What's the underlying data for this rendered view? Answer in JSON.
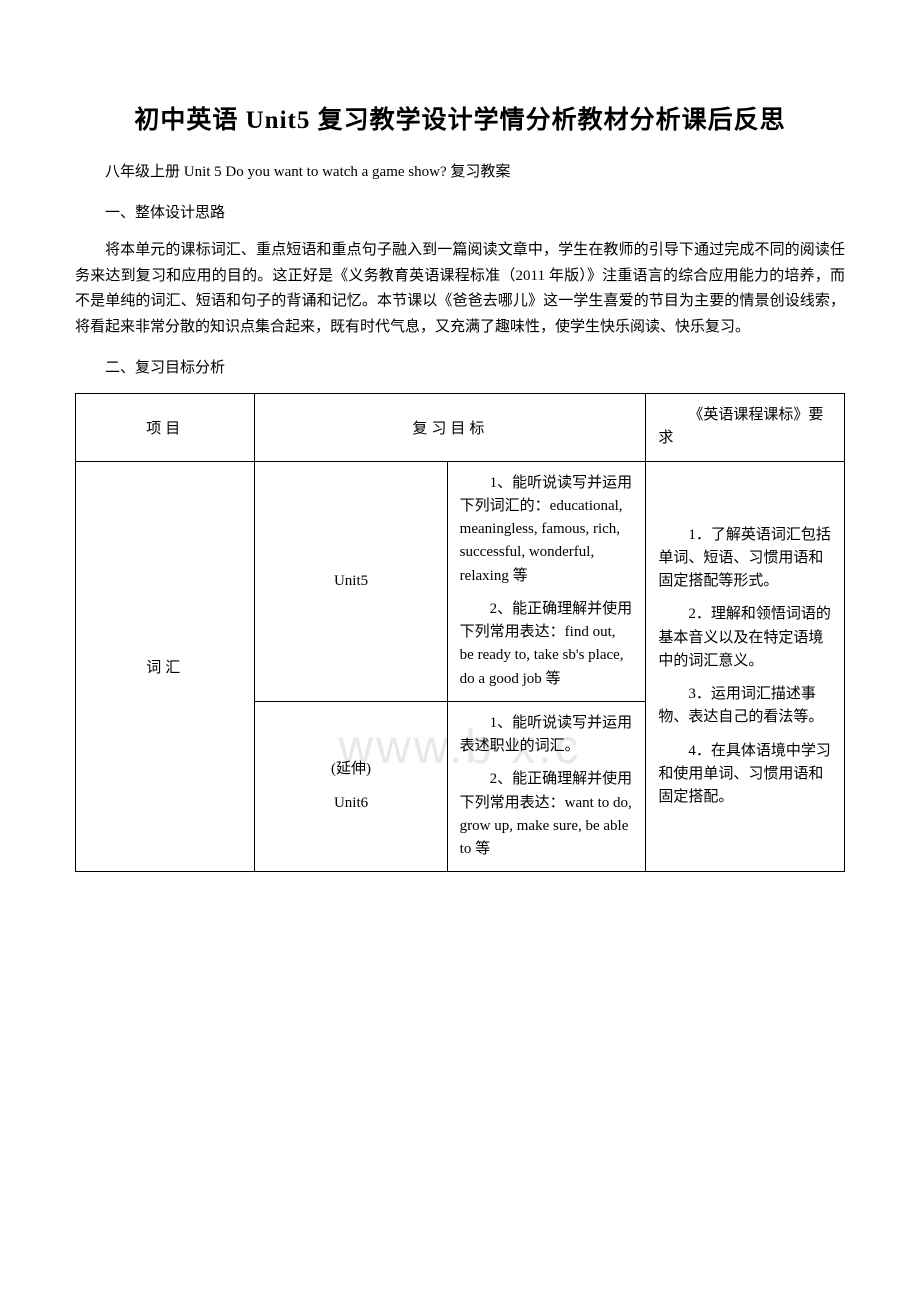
{
  "title": "初中英语 Unit5 复习教学设计学情分析教材分析课后反思",
  "subtitle": "八年级上册 Unit 5 Do you want to watch a game show? 复习教案",
  "section1_heading": "一、整体设计思路",
  "section1_body": "将本单元的课标词汇、重点短语和重点句子融入到一篇阅读文章中，学生在教师的引导下通过完成不同的阅读任务来达到复习和应用的目的。这正好是《义务教育英语课程标准（2011 年版）》注重语言的综合应用能力的培养，而不是单纯的词汇、短语和句子的背诵和记忆。本节课以《爸爸去哪儿》这一学生喜爱的节目为主要的情景创设线索，将看起来非常分散的知识点集合起来，既有时代气息，又充满了趣味性，使学生快乐阅读、快乐复习。",
  "section2_heading": "二、复习目标分析",
  "watermark_text": "www.b    x.c",
  "table": {
    "header": {
      "col1": "项目",
      "col2": "复习目标",
      "col3": "《英语课程课标》要求"
    },
    "row_vocab": {
      "label": "词汇",
      "unit5_label": "Unit5",
      "unit5_detail_p1": "1、能听说读写并运用下列词汇的：educational, meaningless, famous, rich, successful, wonderful, relaxing 等",
      "unit5_detail_p2": "2、能正确理解并使用下列常用表达：find out, be ready to, take sb's place, do a good job 等",
      "unit6_label_1": "(延伸)",
      "unit6_label_2": "Unit6",
      "unit6_detail_p1": "1、能听说读写并运用表述职业的词汇。",
      "unit6_detail_p2": "2、能正确理解并使用下列常用表达：want to do, grow up, make sure, be able to 等",
      "req_p1": "1．了解英语词汇包括单词、短语、习惯用语和固定搭配等形式。",
      "req_p2": "2．理解和领悟词语的基本音义以及在特定语境中的词汇意义。",
      "req_p3": "3．运用词汇描述事物、表达自己的看法等。",
      "req_p4": "4．在具体语境中学习和使用单词、习惯用语和固定搭配。"
    }
  }
}
